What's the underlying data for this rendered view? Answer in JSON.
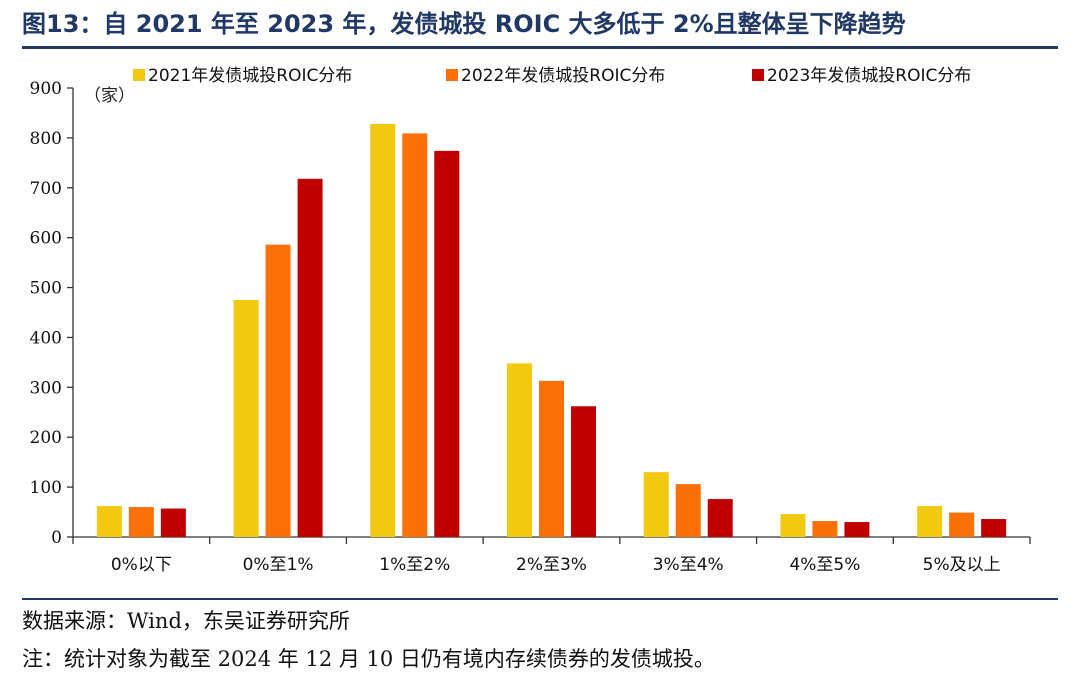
{
  "title": "图13：自 2021 年至 2023 年，发债城投 ROIC 大多低于 2%且整体呈下降趋势",
  "source_note": "数据来源：Wind，东吴证券研究所",
  "footnote": "注：统计对象为截至 2024 年 12 月 10 日仍有境内存续债券的发债城投。",
  "chart_data": {
    "type": "bar",
    "ylabel": "（家）",
    "ylim": [
      0,
      900
    ],
    "yticks": [
      0,
      100,
      200,
      300,
      400,
      500,
      600,
      700,
      800,
      900
    ],
    "categories": [
      "0%以下",
      "0%至1%",
      "1%至2%",
      "2%至3%",
      "3%至4%",
      "4%至5%",
      "5%及以上"
    ],
    "legend_position": "top",
    "grid": false,
    "series": [
      {
        "name": "2021年发债城投ROIC分布",
        "color": "#f2c811",
        "values": [
          62,
          475,
          828,
          348,
          130,
          46,
          62
        ]
      },
      {
        "name": "2022年发债城投ROIC分布",
        "color": "#fb7008",
        "values": [
          60,
          586,
          809,
          313,
          106,
          32,
          49
        ]
      },
      {
        "name": "2023年发债城投ROIC分布",
        "color": "#c00000",
        "values": [
          57,
          718,
          774,
          262,
          76,
          30,
          36
        ]
      }
    ]
  }
}
